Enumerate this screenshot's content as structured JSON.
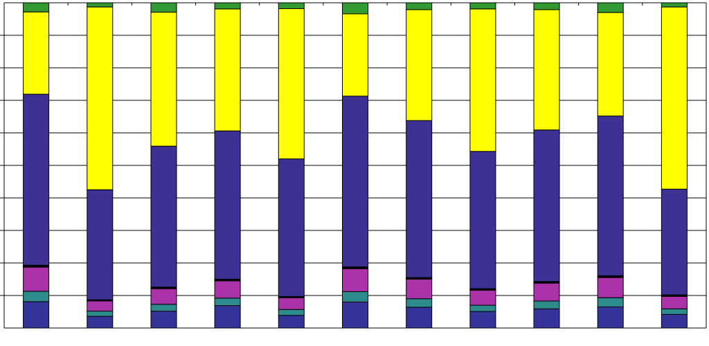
{
  "chart_data": {
    "type": "bar",
    "stacked": true,
    "normalized": true,
    "categories": [
      "",
      "",
      "",
      "",
      "",
      "",
      "",
      "",
      "",
      "",
      ""
    ],
    "ylim": [
      0,
      100
    ],
    "grid": true,
    "legend": "none",
    "series": [
      {
        "color": "#333399",
        "values": [
          8.1,
          3.6,
          5.2,
          6.9,
          3.9,
          8.0,
          6.4,
          5.1,
          5.9,
          6.5,
          4.2
        ]
      },
      {
        "color": "#2e8b8b",
        "values": [
          3.2,
          1.6,
          2.1,
          2.3,
          1.8,
          3.2,
          2.6,
          1.9,
          2.4,
          2.8,
          1.7
        ]
      },
      {
        "color": "#aa33aa",
        "values": [
          7.4,
          3.1,
          4.8,
          5.3,
          3.6,
          7.0,
          6.0,
          4.6,
          5.5,
          6.2,
          3.8
        ]
      },
      {
        "color": "#000000",
        "values": [
          0.6,
          0.4,
          0.5,
          0.5,
          0.4,
          0.6,
          0.5,
          0.5,
          0.5,
          0.6,
          0.5
        ]
      },
      {
        "color": "#3d3194",
        "values": [
          52.6,
          33.8,
          43.3,
          45.6,
          42.3,
          52.5,
          48.3,
          42.2,
          46.6,
          49.1,
          32.5
        ]
      },
      {
        "color": "#ffff00",
        "values": [
          25.3,
          56.2,
          41.2,
          37.5,
          46.2,
          25.3,
          34.1,
          43.8,
          37.0,
          31.8,
          56.0
        ]
      },
      {
        "color": "#339933",
        "values": [
          2.8,
          1.3,
          2.9,
          1.9,
          1.8,
          3.4,
          2.1,
          1.9,
          2.1,
          3.0,
          1.3
        ]
      }
    ]
  }
}
